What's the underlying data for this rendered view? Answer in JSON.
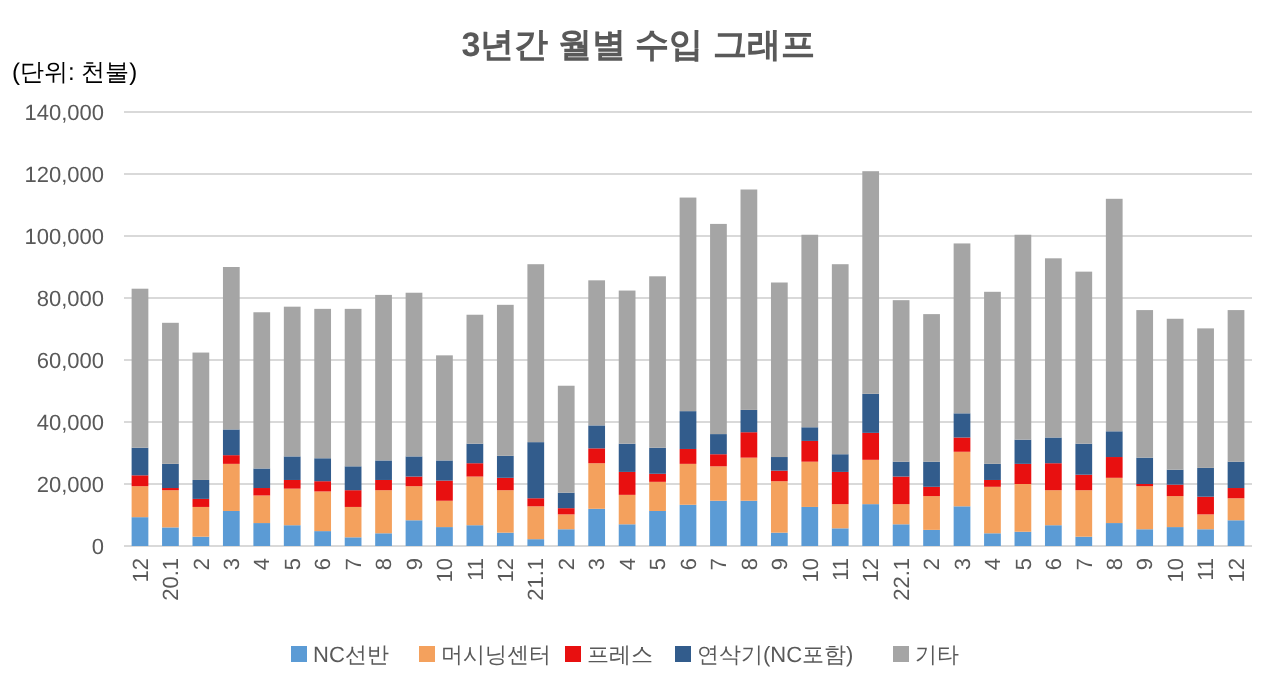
{
  "chart_data": {
    "type": "bar",
    "stacked": true,
    "title": "3년간 월별 수입 그래프",
    "annotations": [
      "(단위: 천불)"
    ],
    "categories": [
      "12",
      "20.1",
      "2",
      "3",
      "4",
      "5",
      "6",
      "7",
      "8",
      "9",
      "10",
      "11",
      "12",
      "21.1",
      "2",
      "3",
      "4",
      "5",
      "6",
      "7",
      "8",
      "9",
      "10",
      "11",
      "12",
      "22.1",
      "2",
      "3",
      "4",
      "5",
      "6",
      "7",
      "8",
      "9",
      "10",
      "11",
      "12"
    ],
    "series": [
      {
        "name": "NC선반",
        "color": "#5b9bd5",
        "values": [
          9300,
          6000,
          3000,
          11300,
          7400,
          6700,
          4800,
          2800,
          4100,
          8300,
          6100,
          6700,
          4300,
          2200,
          5400,
          12000,
          7000,
          11300,
          13300,
          14600,
          14600,
          4300,
          12600,
          5700,
          13500,
          7000,
          5200,
          12800,
          4100,
          4600,
          6700,
          3000,
          7400,
          5400,
          6100,
          5400,
          8300
        ]
      },
      {
        "name": "머시닝센터",
        "color": "#f4a15d",
        "values": [
          10000,
          12000,
          9600,
          15200,
          8900,
          11800,
          12800,
          9800,
          13900,
          11000,
          8500,
          15700,
          13700,
          10600,
          4800,
          14700,
          9500,
          9400,
          13200,
          11100,
          13900,
          16600,
          14600,
          7800,
          14300,
          6500,
          10900,
          17600,
          15000,
          15400,
          11300,
          15000,
          14600,
          13900,
          10000,
          4800,
          7100
        ]
      },
      {
        "name": "프레스",
        "color": "#e81010",
        "values": [
          3500,
          700,
          2600,
          2800,
          2400,
          2800,
          3300,
          5400,
          3300,
          3100,
          6500,
          4300,
          4000,
          2600,
          2000,
          4800,
          7400,
          2600,
          4800,
          3900,
          8200,
          3400,
          6700,
          10400,
          8700,
          8900,
          3000,
          4600,
          2200,
          6500,
          8700,
          5000,
          6700,
          700,
          3700,
          5700,
          3300
        ]
      },
      {
        "name": "연삭기(NC포함)",
        "color": "#325c8c",
        "values": [
          8900,
          7800,
          6100,
          8300,
          6300,
          7600,
          7400,
          7700,
          6300,
          6500,
          6500,
          6300,
          7100,
          18100,
          5000,
          7400,
          9100,
          8400,
          12200,
          6500,
          7200,
          4400,
          4400,
          5700,
          12600,
          4800,
          8100,
          7800,
          5200,
          7800,
          8300,
          10000,
          8300,
          8500,
          4800,
          9300,
          8500
        ]
      },
      {
        "name": "기타",
        "color": "#a5a5a5",
        "values": [
          51300,
          45500,
          41100,
          52400,
          50400,
          48300,
          48200,
          50800,
          53400,
          52800,
          33900,
          41600,
          48700,
          57400,
          34500,
          46800,
          49400,
          55300,
          68900,
          67800,
          71100,
          56300,
          62100,
          61300,
          71800,
          52100,
          47600,
          54800,
          55500,
          66100,
          57800,
          55500,
          75000,
          47600,
          48700,
          45000,
          48900
        ]
      }
    ],
    "ylim": [
      0,
      140000
    ],
    "yticks": [
      {
        "value": 0,
        "label": "0"
      },
      {
        "value": 20000,
        "label": "20,000"
      },
      {
        "value": 40000,
        "label": "40,000"
      },
      {
        "value": 60000,
        "label": "60,000"
      },
      {
        "value": 80000,
        "label": "80,000"
      },
      {
        "value": 100000,
        "label": "100,000"
      },
      {
        "value": 120000,
        "label": "120,000"
      },
      {
        "value": 140000,
        "label": "140,000"
      }
    ],
    "grid": "y",
    "legend": "bottom"
  }
}
